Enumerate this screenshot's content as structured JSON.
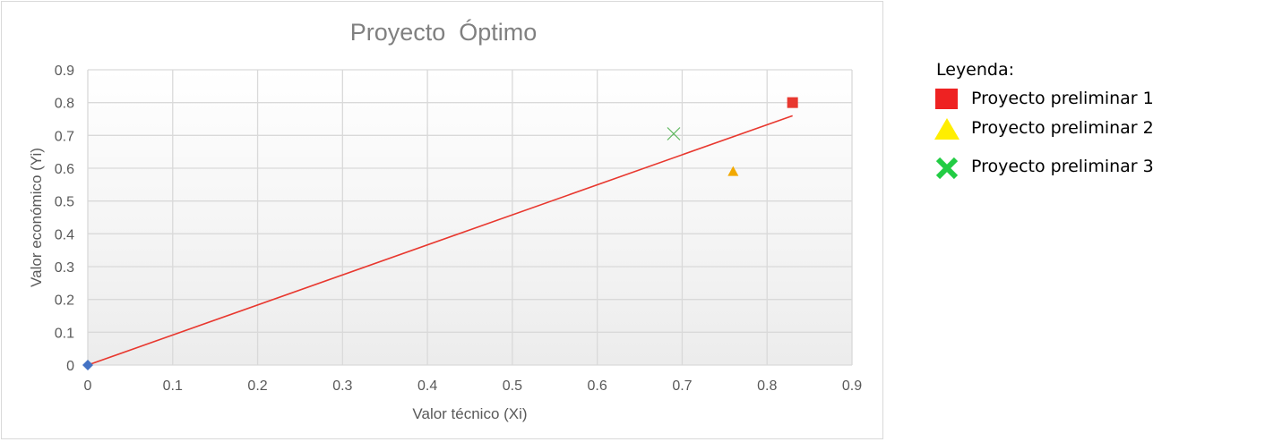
{
  "chart_data": {
    "type": "scatter",
    "title": "Proyecto  Óptimo",
    "xlabel": "Valor técnico (Xi)",
    "ylabel": "Valor económico (Yi)",
    "xlim": [
      0,
      0.9
    ],
    "ylim": [
      0,
      0.9
    ],
    "xticks": [
      "0",
      "0.1",
      "0.2",
      "0.3",
      "0.4",
      "0.5",
      "0.6",
      "0.7",
      "0.8",
      "0.9"
    ],
    "yticks": [
      "0",
      "0.1",
      "0.2",
      "0.3",
      "0.4",
      "0.5",
      "0.6",
      "0.7",
      "0.8",
      "0.9"
    ],
    "grid": true,
    "series": [
      {
        "marker": "diamond",
        "color": "#4472c4",
        "points": [
          [
            0,
            0
          ]
        ]
      },
      {
        "marker": "square",
        "color": "#e8382f",
        "points": [
          [
            0.83,
            0.8
          ]
        ]
      },
      {
        "marker": "triangle",
        "color": "#f2a900",
        "points": [
          [
            0.76,
            0.59
          ]
        ]
      },
      {
        "marker": "x",
        "color": "#5cb85c",
        "points": [
          [
            0.69,
            0.705
          ]
        ]
      }
    ],
    "lines": [
      {
        "color": "#e8382f",
        "points": [
          [
            0,
            0
          ],
          [
            0.83,
            0.76
          ]
        ]
      }
    ]
  },
  "legend": {
    "title": "Leyenda:",
    "items": [
      {
        "label": "Proyecto preliminar 1",
        "marker": "square",
        "color": "#ee2222"
      },
      {
        "label": "Proyecto preliminar 2",
        "marker": "triangle",
        "color": "#ffee00"
      },
      {
        "label": "Proyecto preliminar 3",
        "marker": "x",
        "color": "#22cc44"
      }
    ]
  }
}
